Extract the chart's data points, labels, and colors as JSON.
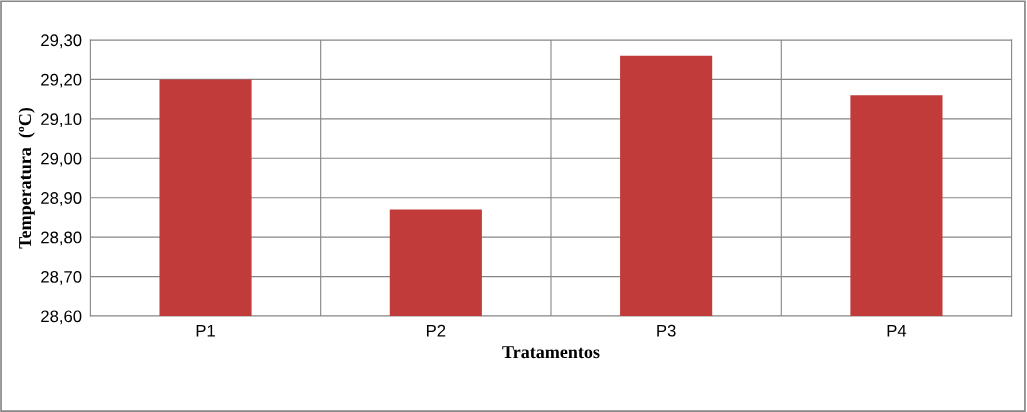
{
  "chart_data": {
    "type": "bar",
    "xlabel": "Tratamentos",
    "ylabel": "Temperatura  (ºC)",
    "categories": [
      "P1",
      "P2",
      "P3",
      "P4"
    ],
    "values": [
      29.2,
      28.87,
      29.26,
      29.16
    ],
    "color": "#c23b3b",
    "ylim": [
      28.6,
      29.3
    ],
    "yticks": [
      {
        "value": 28.6,
        "label": "28,60"
      },
      {
        "value": 28.7,
        "label": "28,70"
      },
      {
        "value": 28.8,
        "label": "28,80"
      },
      {
        "value": 28.9,
        "label": "28,90"
      },
      {
        "value": 29.0,
        "label": "29,00"
      },
      {
        "value": 29.1,
        "label": "29,10"
      },
      {
        "value": 29.2,
        "label": "29,20"
      },
      {
        "value": 29.3,
        "label": "29,30"
      }
    ],
    "grid": true
  }
}
